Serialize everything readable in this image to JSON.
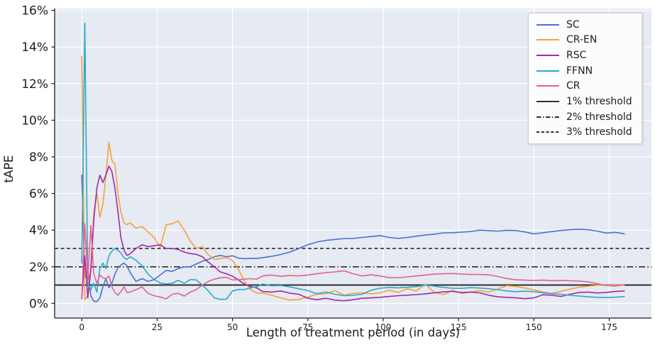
{
  "chart_data": {
    "type": "line",
    "title": "",
    "xlabel": "Length of treatment period (in days)",
    "ylabel": "tAPE",
    "x_ticks": [
      0,
      25,
      50,
      75,
      100,
      125,
      150,
      175
    ],
    "y_ticks": [
      0,
      2,
      4,
      6,
      8,
      10,
      12,
      14,
      16
    ],
    "y_tick_suffix": "%",
    "xlim": [
      -9,
      189
    ],
    "ylim": [
      -0.8,
      16.1
    ],
    "grid": true,
    "legend_position": "upper-right",
    "plot_bg": "#e5eaf3",
    "grid_color": "#ffffff",
    "axis_color": "#1f1f1f",
    "text_color": "#1d1d1d",
    "threshold_color": "#2e2e2e",
    "x": [
      0,
      1,
      2,
      3,
      4,
      5,
      6,
      7,
      8,
      9,
      10,
      11,
      12,
      13,
      14,
      15,
      16,
      18,
      20,
      22,
      24,
      26,
      28,
      30,
      32,
      34,
      36,
      38,
      40,
      42,
      44,
      46,
      48,
      50,
      52,
      54,
      56,
      58,
      60,
      63,
      66,
      69,
      72,
      75,
      78,
      81,
      84,
      87,
      90,
      93,
      96,
      99,
      102,
      105,
      108,
      111,
      114,
      117,
      120,
      123,
      126,
      129,
      132,
      135,
      138,
      141,
      144,
      147,
      150,
      153,
      156,
      159,
      162,
      165,
      168,
      171,
      174,
      177,
      180
    ],
    "series": [
      {
        "name": "SC",
        "color": "#4d70d2",
        "values": [
          7.0,
          1.4,
          1.9,
          0.4,
          0.12,
          0.1,
          0.3,
          0.9,
          1.35,
          0.85,
          1.1,
          1.6,
          1.95,
          2.1,
          2.2,
          2.05,
          1.7,
          1.2,
          1.35,
          1.2,
          1.3,
          1.55,
          1.8,
          1.75,
          1.9,
          2.0,
          2.0,
          2.15,
          2.3,
          2.4,
          2.55,
          2.62,
          2.55,
          2.6,
          2.47,
          2.44,
          2.46,
          2.45,
          2.5,
          2.57,
          2.67,
          2.8,
          3.0,
          3.2,
          3.35,
          3.44,
          3.49,
          3.54,
          3.55,
          3.6,
          3.65,
          3.7,
          3.6,
          3.55,
          3.6,
          3.67,
          3.73,
          3.78,
          3.85,
          3.86,
          3.89,
          3.92,
          4.0,
          3.97,
          3.95,
          3.99,
          3.98,
          3.9,
          3.8,
          3.86,
          3.92,
          3.98,
          4.02,
          4.05,
          4.02,
          3.95,
          3.84,
          3.88,
          3.8
        ]
      },
      {
        "name": "CR-EN",
        "color": "#f6a235",
        "values": [
          13.5,
          0.2,
          0.45,
          2.0,
          4.9,
          6.0,
          4.7,
          5.4,
          7.0,
          8.8,
          7.8,
          7.6,
          6.0,
          5.0,
          4.4,
          4.3,
          4.4,
          4.1,
          4.2,
          3.9,
          3.6,
          3.05,
          4.3,
          4.35,
          4.5,
          4.0,
          3.4,
          3.0,
          3.1,
          2.65,
          2.4,
          2.45,
          2.5,
          2.35,
          1.85,
          1.2,
          0.75,
          0.58,
          0.56,
          0.45,
          0.3,
          0.18,
          0.22,
          0.35,
          0.5,
          0.52,
          0.7,
          0.44,
          0.55,
          0.58,
          0.52,
          0.58,
          0.72,
          0.6,
          0.8,
          0.68,
          1.05,
          0.6,
          0.48,
          0.7,
          0.55,
          0.62,
          0.7,
          0.62,
          0.78,
          0.97,
          0.92,
          0.84,
          0.74,
          0.62,
          0.55,
          0.66,
          0.78,
          0.88,
          0.94,
          0.99,
          1.0,
          1.0,
          1.0
        ]
      },
      {
        "name": "RSC",
        "color": "#a428a8",
        "values": [
          0.25,
          2.6,
          0.3,
          1.8,
          4.6,
          6.3,
          7.0,
          6.6,
          7.0,
          7.5,
          7.2,
          6.3,
          5.0,
          3.6,
          2.9,
          2.62,
          2.7,
          3.0,
          3.2,
          3.1,
          3.15,
          3.2,
          3.0,
          3.0,
          2.95,
          2.8,
          2.72,
          2.68,
          2.55,
          2.25,
          2.0,
          1.72,
          1.62,
          1.48,
          1.28,
          1.05,
          0.92,
          0.85,
          0.65,
          0.62,
          0.68,
          0.56,
          0.5,
          0.28,
          0.2,
          0.28,
          0.18,
          0.14,
          0.2,
          0.28,
          0.3,
          0.33,
          0.38,
          0.42,
          0.45,
          0.48,
          0.52,
          0.58,
          0.63,
          0.66,
          0.6,
          0.62,
          0.58,
          0.45,
          0.36,
          0.33,
          0.3,
          0.26,
          0.3,
          0.47,
          0.44,
          0.38,
          0.5,
          0.6,
          0.62,
          0.57,
          0.6,
          0.65,
          0.68
        ]
      },
      {
        "name": "FFNN",
        "color": "#2ca8cb",
        "values": [
          2.2,
          15.3,
          1.05,
          0.75,
          1.1,
          0.62,
          1.9,
          2.2,
          1.9,
          2.6,
          2.85,
          3.0,
          2.9,
          2.75,
          2.5,
          2.4,
          2.55,
          2.35,
          2.05,
          1.6,
          1.3,
          1.12,
          1.06,
          1.1,
          1.26,
          1.1,
          1.3,
          1.28,
          1.0,
          0.68,
          0.3,
          0.22,
          0.23,
          0.68,
          0.76,
          0.76,
          0.85,
          0.9,
          1.06,
          0.96,
          0.98,
          0.9,
          0.8,
          0.7,
          0.53,
          0.62,
          0.5,
          0.42,
          0.45,
          0.5,
          0.72,
          0.83,
          0.87,
          0.85,
          0.88,
          0.92,
          1.0,
          0.95,
          0.87,
          0.83,
          0.82,
          0.86,
          0.84,
          0.8,
          0.75,
          0.68,
          0.64,
          0.67,
          0.64,
          0.58,
          0.52,
          0.5,
          0.44,
          0.4,
          0.36,
          0.33,
          0.32,
          0.34,
          0.37
        ]
      },
      {
        "name": "CR",
        "color": "#e5618b",
        "values": [
          0.3,
          4.35,
          1.3,
          4.25,
          1.6,
          1.1,
          1.55,
          1.4,
          1.35,
          1.5,
          0.9,
          0.6,
          0.45,
          0.65,
          0.9,
          0.6,
          0.62,
          0.75,
          0.9,
          0.55,
          0.42,
          0.35,
          0.25,
          0.5,
          0.55,
          0.4,
          0.62,
          0.75,
          1.0,
          1.2,
          1.32,
          1.4,
          1.42,
          1.28,
          1.3,
          1.32,
          1.35,
          1.32,
          1.5,
          1.55,
          1.48,
          1.52,
          1.5,
          1.55,
          1.62,
          1.68,
          1.72,
          1.78,
          1.62,
          1.5,
          1.56,
          1.5,
          1.4,
          1.4,
          1.45,
          1.5,
          1.55,
          1.6,
          1.62,
          1.63,
          1.6,
          1.58,
          1.58,
          1.56,
          1.47,
          1.36,
          1.29,
          1.27,
          1.25,
          1.27,
          1.24,
          1.26,
          1.24,
          1.22,
          1.18,
          1.08,
          0.98,
          0.95,
          1.02
        ]
      }
    ],
    "thresholds": [
      {
        "label": "1% threshold",
        "value": 1,
        "style": "solid"
      },
      {
        "label": "2% threshold",
        "value": 2,
        "style": "dashdot"
      },
      {
        "label": "3% threshold",
        "value": 3,
        "style": "dashed"
      }
    ]
  }
}
